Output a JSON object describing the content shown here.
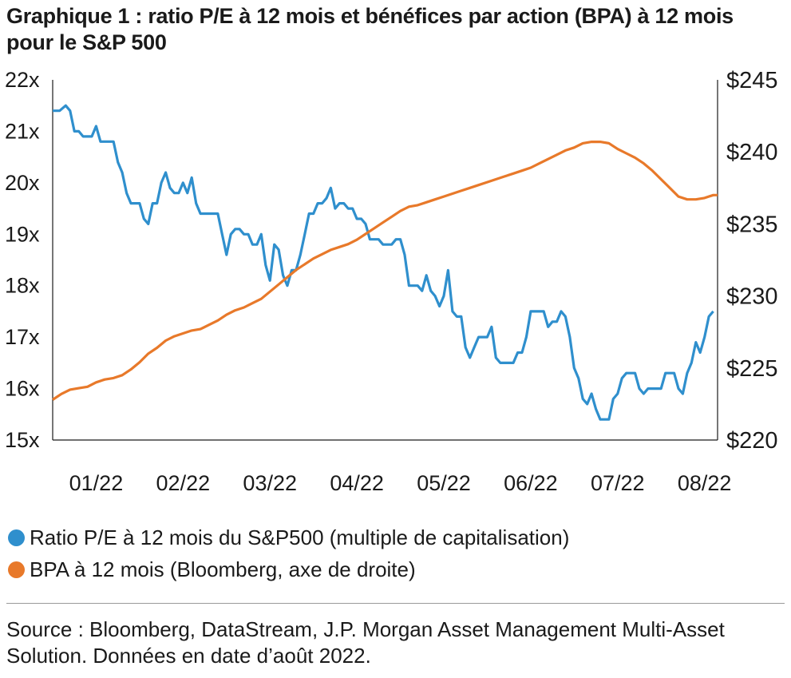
{
  "title": "Graphique 1 : ratio P/E à 12 mois et bénéfices par action (BPA) à 12 mois pour le S&P 500",
  "source": "Source : Bloomberg, DataStream, J.P. Morgan Asset Management Multi-Asset Solution. Données en date d’août 2022.",
  "chart_data": {
    "type": "line",
    "title": "Graphique 1 : ratio P/E à 12 mois et bénéfices par action (BPA) à 12 mois pour le S&P 500",
    "x_unit": "months since 01/22",
    "x_ticks": [
      "01/22",
      "02/22",
      "03/22",
      "04/22",
      "05/22",
      "06/22",
      "07/22",
      "08/22"
    ],
    "xlim": [
      -0.1,
      7.55
    ],
    "y_left": {
      "ylim": [
        15,
        22
      ],
      "ticks": [
        "15x",
        "16x",
        "17x",
        "18x",
        "19x",
        "20x",
        "21x",
        "22x"
      ]
    },
    "y_right": {
      "ylim": [
        220,
        245
      ],
      "ticks": [
        "$220",
        "$225",
        "$230",
        "$235",
        "$240",
        "$245"
      ]
    },
    "grid": false,
    "legend_position": "bottom",
    "series": [
      {
        "name": "Ratio P/E à 12 mois du S&P500 (multiple de capitalisation)",
        "axis": "left",
        "color": "#2f8fcd",
        "points": [
          [
            -0.1,
            21.4
          ],
          [
            -0.02,
            21.4
          ],
          [
            0.05,
            21.5
          ],
          [
            0.1,
            21.4
          ],
          [
            0.15,
            21.0
          ],
          [
            0.2,
            21.0
          ],
          [
            0.25,
            20.9
          ],
          [
            0.3,
            20.9
          ],
          [
            0.35,
            20.9
          ],
          [
            0.4,
            21.1
          ],
          [
            0.45,
            20.8
          ],
          [
            0.5,
            20.8
          ],
          [
            0.55,
            20.8
          ],
          [
            0.6,
            20.8
          ],
          [
            0.65,
            20.4
          ],
          [
            0.7,
            20.2
          ],
          [
            0.75,
            19.8
          ],
          [
            0.8,
            19.6
          ],
          [
            0.85,
            19.6
          ],
          [
            0.9,
            19.6
          ],
          [
            0.95,
            19.3
          ],
          [
            1.0,
            19.2
          ],
          [
            1.05,
            19.6
          ],
          [
            1.1,
            19.6
          ],
          [
            1.15,
            20.0
          ],
          [
            1.2,
            20.2
          ],
          [
            1.25,
            19.9
          ],
          [
            1.3,
            19.8
          ],
          [
            1.35,
            19.8
          ],
          [
            1.4,
            20.0
          ],
          [
            1.45,
            19.8
          ],
          [
            1.5,
            20.1
          ],
          [
            1.55,
            19.6
          ],
          [
            1.6,
            19.4
          ],
          [
            1.65,
            19.4
          ],
          [
            1.7,
            19.4
          ],
          [
            1.75,
            19.4
          ],
          [
            1.8,
            19.4
          ],
          [
            1.85,
            19.0
          ],
          [
            1.9,
            18.6
          ],
          [
            1.95,
            19.0
          ],
          [
            2.0,
            19.1
          ],
          [
            2.05,
            19.1
          ],
          [
            2.1,
            19.0
          ],
          [
            2.15,
            19.0
          ],
          [
            2.2,
            18.8
          ],
          [
            2.25,
            18.8
          ],
          [
            2.3,
            19.0
          ],
          [
            2.35,
            18.4
          ],
          [
            2.4,
            18.1
          ],
          [
            2.45,
            18.8
          ],
          [
            2.5,
            18.7
          ],
          [
            2.55,
            18.2
          ],
          [
            2.6,
            18.0
          ],
          [
            2.65,
            18.3
          ],
          [
            2.7,
            18.3
          ],
          [
            2.75,
            18.6
          ],
          [
            2.8,
            19.0
          ],
          [
            2.85,
            19.4
          ],
          [
            2.9,
            19.4
          ],
          [
            2.95,
            19.6
          ],
          [
            3.0,
            19.6
          ],
          [
            3.05,
            19.7
          ],
          [
            3.1,
            19.9
          ],
          [
            3.15,
            19.5
          ],
          [
            3.2,
            19.6
          ],
          [
            3.25,
            19.6
          ],
          [
            3.3,
            19.5
          ],
          [
            3.35,
            19.5
          ],
          [
            3.4,
            19.3
          ],
          [
            3.45,
            19.3
          ],
          [
            3.5,
            19.2
          ],
          [
            3.55,
            18.9
          ],
          [
            3.6,
            18.9
          ],
          [
            3.65,
            18.9
          ],
          [
            3.7,
            18.8
          ],
          [
            3.75,
            18.8
          ],
          [
            3.8,
            18.8
          ],
          [
            3.85,
            18.9
          ],
          [
            3.9,
            18.9
          ],
          [
            3.95,
            18.6
          ],
          [
            4.0,
            18.0
          ],
          [
            4.05,
            18.0
          ],
          [
            4.1,
            18.0
          ],
          [
            4.15,
            17.9
          ],
          [
            4.2,
            18.2
          ],
          [
            4.25,
            17.9
          ],
          [
            4.3,
            17.8
          ],
          [
            4.35,
            17.6
          ],
          [
            4.4,
            17.8
          ],
          [
            4.45,
            18.3
          ],
          [
            4.5,
            17.5
          ],
          [
            4.55,
            17.4
          ],
          [
            4.6,
            17.4
          ],
          [
            4.65,
            16.8
          ],
          [
            4.7,
            16.6
          ],
          [
            4.75,
            16.8
          ],
          [
            4.8,
            17.0
          ],
          [
            4.85,
            17.0
          ],
          [
            4.9,
            17.0
          ],
          [
            4.95,
            17.2
          ],
          [
            5.0,
            16.6
          ],
          [
            5.05,
            16.5
          ],
          [
            5.1,
            16.5
          ],
          [
            5.15,
            16.5
          ],
          [
            5.2,
            16.5
          ],
          [
            5.25,
            16.7
          ],
          [
            5.3,
            16.7
          ],
          [
            5.35,
            17.0
          ],
          [
            5.4,
            17.5
          ],
          [
            5.45,
            17.5
          ],
          [
            5.5,
            17.5
          ],
          [
            5.55,
            17.5
          ],
          [
            5.6,
            17.2
          ],
          [
            5.65,
            17.3
          ],
          [
            5.7,
            17.3
          ],
          [
            5.75,
            17.5
          ],
          [
            5.8,
            17.4
          ],
          [
            5.85,
            17.0
          ],
          [
            5.9,
            16.4
          ],
          [
            5.95,
            16.2
          ],
          [
            6.0,
            15.8
          ],
          [
            6.05,
            15.7
          ],
          [
            6.1,
            15.9
          ],
          [
            6.15,
            15.6
          ],
          [
            6.2,
            15.4
          ],
          [
            6.25,
            15.4
          ],
          [
            6.3,
            15.4
          ],
          [
            6.35,
            15.8
          ],
          [
            6.4,
            15.9
          ],
          [
            6.45,
            16.2
          ],
          [
            6.5,
            16.3
          ],
          [
            6.55,
            16.3
          ],
          [
            6.6,
            16.3
          ],
          [
            6.65,
            16.0
          ],
          [
            6.7,
            15.9
          ],
          [
            6.75,
            16.0
          ],
          [
            6.8,
            16.0
          ],
          [
            6.85,
            16.0
          ],
          [
            6.9,
            16.0
          ],
          [
            6.95,
            16.3
          ],
          [
            7.0,
            16.3
          ],
          [
            7.05,
            16.3
          ],
          [
            7.1,
            16.0
          ],
          [
            7.15,
            15.9
          ],
          [
            7.2,
            16.3
          ],
          [
            7.25,
            16.5
          ],
          [
            7.3,
            16.9
          ],
          [
            7.35,
            16.7
          ],
          [
            7.4,
            17.0
          ],
          [
            7.45,
            17.4
          ],
          [
            7.5,
            17.5
          ]
        ]
      },
      {
        "name": "BPA à 12 mois (Bloomberg, axe de droite)",
        "axis": "right",
        "color": "#e8792a",
        "points": [
          [
            -0.1,
            222.8
          ],
          [
            0.0,
            223.2
          ],
          [
            0.1,
            223.5
          ],
          [
            0.2,
            223.6
          ],
          [
            0.3,
            223.7
          ],
          [
            0.4,
            224.0
          ],
          [
            0.5,
            224.2
          ],
          [
            0.6,
            224.3
          ],
          [
            0.7,
            224.5
          ],
          [
            0.8,
            224.9
          ],
          [
            0.9,
            225.4
          ],
          [
            1.0,
            226.0
          ],
          [
            1.1,
            226.4
          ],
          [
            1.2,
            226.9
          ],
          [
            1.3,
            227.2
          ],
          [
            1.4,
            227.4
          ],
          [
            1.5,
            227.6
          ],
          [
            1.6,
            227.7
          ],
          [
            1.7,
            228.0
          ],
          [
            1.8,
            228.3
          ],
          [
            1.9,
            228.7
          ],
          [
            2.0,
            229.0
          ],
          [
            2.1,
            229.2
          ],
          [
            2.2,
            229.5
          ],
          [
            2.3,
            229.8
          ],
          [
            2.4,
            230.3
          ],
          [
            2.5,
            230.8
          ],
          [
            2.6,
            231.3
          ],
          [
            2.7,
            231.8
          ],
          [
            2.8,
            232.2
          ],
          [
            2.9,
            232.6
          ],
          [
            3.0,
            232.9
          ],
          [
            3.1,
            233.2
          ],
          [
            3.2,
            233.4
          ],
          [
            3.3,
            233.6
          ],
          [
            3.4,
            233.9
          ],
          [
            3.5,
            234.3
          ],
          [
            3.6,
            234.7
          ],
          [
            3.7,
            235.1
          ],
          [
            3.8,
            235.5
          ],
          [
            3.9,
            235.9
          ],
          [
            4.0,
            236.2
          ],
          [
            4.1,
            236.3
          ],
          [
            4.2,
            236.5
          ],
          [
            4.3,
            236.7
          ],
          [
            4.4,
            236.9
          ],
          [
            4.5,
            237.1
          ],
          [
            4.6,
            237.3
          ],
          [
            4.7,
            237.5
          ],
          [
            4.8,
            237.7
          ],
          [
            4.9,
            237.9
          ],
          [
            5.0,
            238.1
          ],
          [
            5.1,
            238.3
          ],
          [
            5.2,
            238.5
          ],
          [
            5.3,
            238.7
          ],
          [
            5.4,
            238.9
          ],
          [
            5.5,
            239.2
          ],
          [
            5.6,
            239.5
          ],
          [
            5.7,
            239.8
          ],
          [
            5.8,
            240.1
          ],
          [
            5.9,
            240.3
          ],
          [
            6.0,
            240.6
          ],
          [
            6.1,
            240.7
          ],
          [
            6.2,
            240.7
          ],
          [
            6.3,
            240.6
          ],
          [
            6.4,
            240.2
          ],
          [
            6.5,
            239.9
          ],
          [
            6.6,
            239.6
          ],
          [
            6.7,
            239.2
          ],
          [
            6.8,
            238.7
          ],
          [
            6.9,
            238.1
          ],
          [
            7.0,
            237.5
          ],
          [
            7.1,
            236.9
          ],
          [
            7.2,
            236.7
          ],
          [
            7.3,
            236.7
          ],
          [
            7.4,
            236.8
          ],
          [
            7.5,
            237.0
          ],
          [
            7.55,
            237.0
          ]
        ]
      }
    ]
  }
}
